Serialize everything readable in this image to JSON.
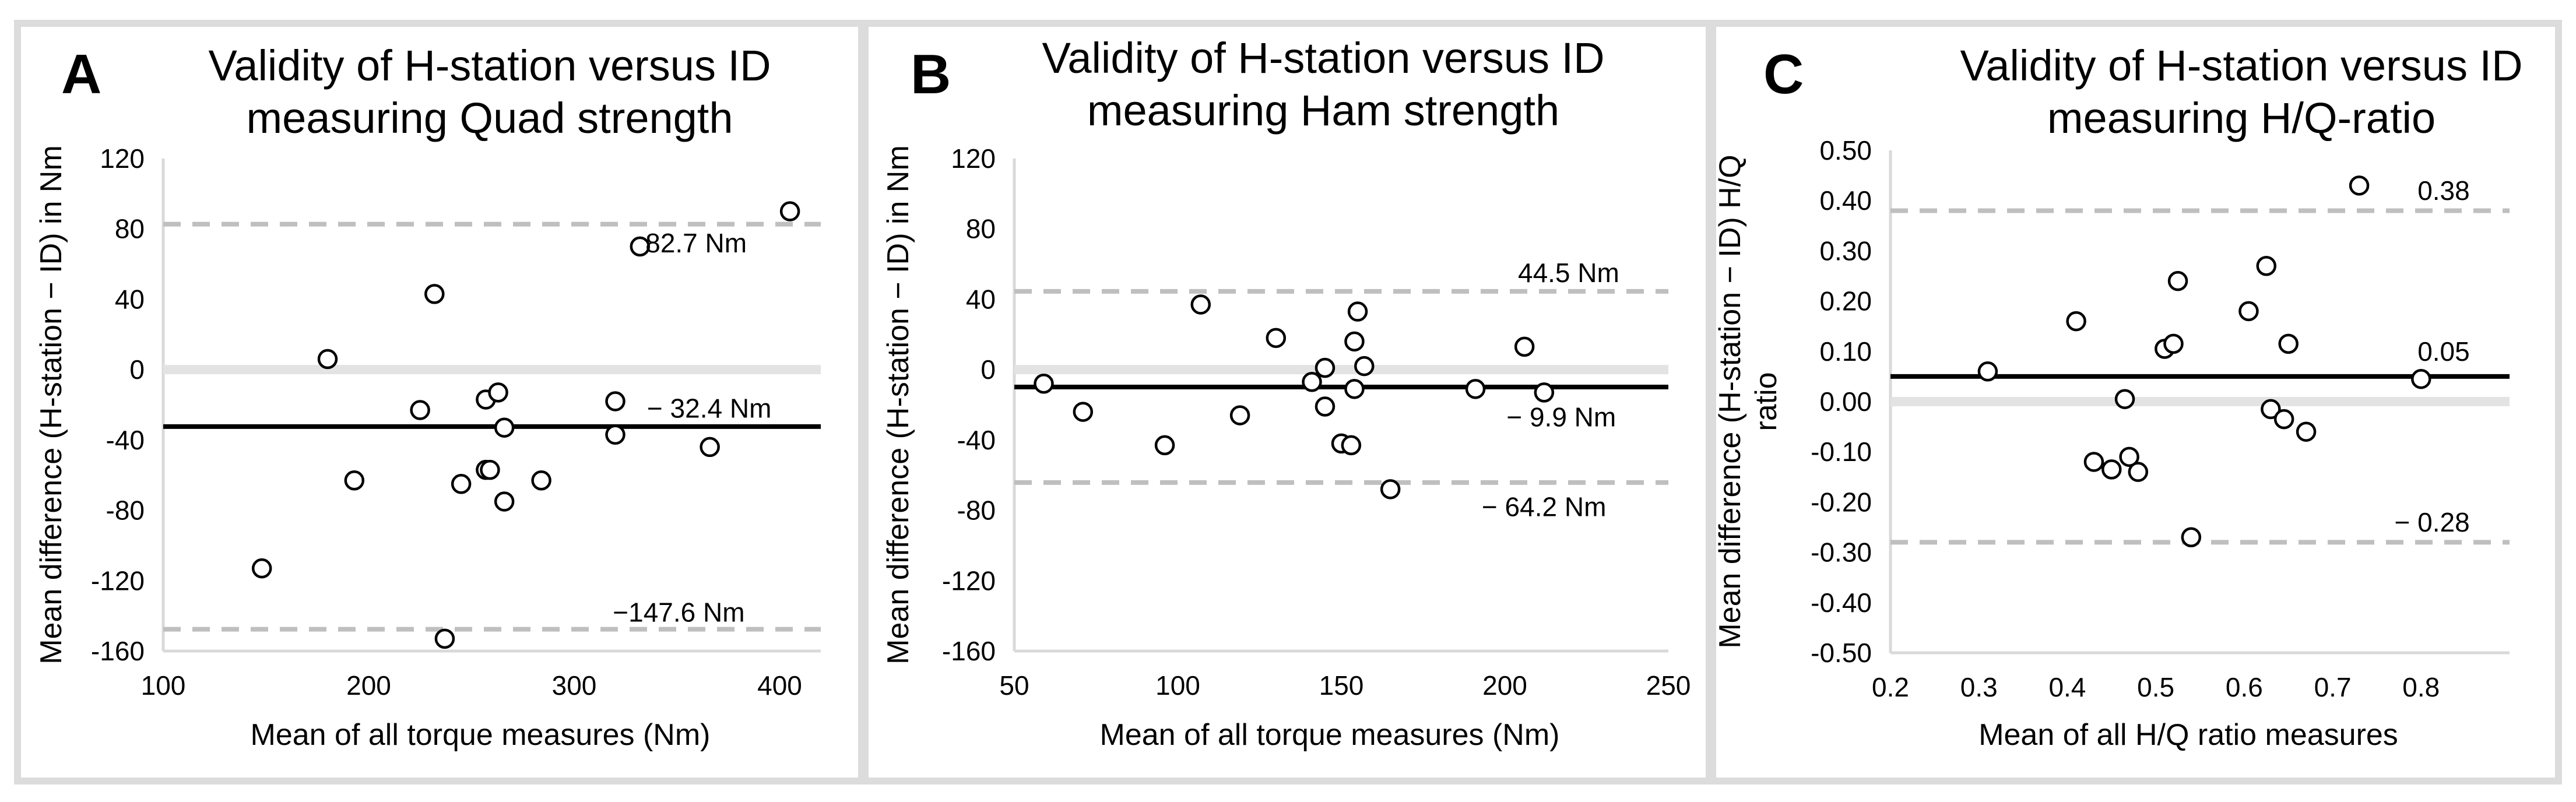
{
  "chart_data": [
    {
      "type": "scatter",
      "panel_letter": "A",
      "title_lines": [
        "Validity of H-station versus ID",
        "measuring Quad strength"
      ],
      "xlabel": "Mean of all torque measures (Nm)",
      "ylabel": "Mean difference (H-station − ID) in Nm",
      "xlim": [
        100,
        420
      ],
      "ylim": [
        -160,
        120
      ],
      "xticks": [
        100,
        200,
        300,
        400
      ],
      "yticks": [
        -160,
        -120,
        -80,
        -40,
        0,
        40,
        80,
        120
      ],
      "tick_decimals": 0,
      "zero_line": 0,
      "mean_line": -32.4,
      "upper_loa": 82.7,
      "lower_loa": -147.6,
      "annotations": [
        {
          "text": "82.7 Nm",
          "x": 384,
          "y": 72
        },
        {
          "text": "− 32.4 Nm",
          "x": 396,
          "y": -22
        },
        {
          "text": "−147.6 Nm",
          "x": 383,
          "y": -138
        }
      ],
      "points": [
        {
          "x": 148,
          "y": -113
        },
        {
          "x": 180,
          "y": 6
        },
        {
          "x": 193,
          "y": -63
        },
        {
          "x": 225,
          "y": -23
        },
        {
          "x": 232,
          "y": 43
        },
        {
          "x": 237,
          "y": -153
        },
        {
          "x": 245,
          "y": -65
        },
        {
          "x": 257,
          "y": -17
        },
        {
          "x": 257,
          "y": -57
        },
        {
          "x": 259,
          "y": -57
        },
        {
          "x": 263,
          "y": -13
        },
        {
          "x": 266,
          "y": -33
        },
        {
          "x": 266,
          "y": -75
        },
        {
          "x": 284,
          "y": -63
        },
        {
          "x": 320,
          "y": -18
        },
        {
          "x": 320,
          "y": -37
        },
        {
          "x": 332,
          "y": 70
        },
        {
          "x": 366,
          "y": -44
        },
        {
          "x": 405,
          "y": 90
        }
      ]
    },
    {
      "type": "scatter",
      "panel_letter": "B",
      "title_lines": [
        "Validity of H-station versus ID",
        "measuring Ham strength"
      ],
      "xlabel": "Mean of all torque measures (Nm)",
      "ylabel": "Mean difference (H-station − ID) in Nm",
      "xlim": [
        50,
        250
      ],
      "ylim": [
        -160,
        120
      ],
      "xticks": [
        50,
        100,
        150,
        200,
        250
      ],
      "yticks": [
        -160,
        -120,
        -80,
        -40,
        0,
        40,
        80,
        120
      ],
      "tick_decimals": 0,
      "zero_line": 0,
      "mean_line": -9.9,
      "upper_loa": 44.5,
      "lower_loa": -64.2,
      "annotations": [
        {
          "text": "44.5 Nm",
          "x": 235,
          "y": 55
        },
        {
          "text": "− 9.9 Nm",
          "x": 234,
          "y": -27
        },
        {
          "text": "− 64.2 Nm",
          "x": 231,
          "y": -78
        }
      ],
      "points": [
        {
          "x": 59,
          "y": -8
        },
        {
          "x": 71,
          "y": -24
        },
        {
          "x": 96,
          "y": -43
        },
        {
          "x": 107,
          "y": 37
        },
        {
          "x": 119,
          "y": -26
        },
        {
          "x": 130,
          "y": 18
        },
        {
          "x": 141,
          "y": -7
        },
        {
          "x": 145,
          "y": 1
        },
        {
          "x": 145,
          "y": -21
        },
        {
          "x": 150,
          "y": -42
        },
        {
          "x": 153,
          "y": -43
        },
        {
          "x": 154,
          "y": 16
        },
        {
          "x": 154,
          "y": -11
        },
        {
          "x": 155,
          "y": 33
        },
        {
          "x": 157,
          "y": 2
        },
        {
          "x": 165,
          "y": -68
        },
        {
          "x": 191,
          "y": -11
        },
        {
          "x": 206,
          "y": 13
        },
        {
          "x": 212,
          "y": -13
        }
      ]
    },
    {
      "type": "scatter",
      "panel_letter": "C",
      "title_lines": [
        "Validity of  H-station versus ID",
        "measuring H/Q-ratio"
      ],
      "xlabel": "Mean of all H/Q ratio measures",
      "ylabel": "Mean difference (H-station − ID) H/Q",
      "ylabel2": "ratio",
      "xlim": [
        0.2,
        0.9
      ],
      "ylim": [
        -0.5,
        0.5
      ],
      "xticks": [
        0.2,
        0.3,
        0.4,
        0.5,
        0.6,
        0.7,
        0.8
      ],
      "yticks": [
        -0.5,
        -0.4,
        -0.3,
        -0.2,
        -0.1,
        0.0,
        0.1,
        0.2,
        0.3,
        0.4,
        0.5
      ],
      "tick_decimals": 2,
      "xtick_decimals": 1,
      "zero_line": 0.0,
      "mean_line": 0.05,
      "upper_loa": 0.38,
      "lower_loa": -0.28,
      "annotations": [
        {
          "text": "0.38",
          "x": 0.855,
          "y": 0.42
        },
        {
          "text": "0.05",
          "x": 0.855,
          "y": 0.1
        },
        {
          "text": "− 0.28",
          "x": 0.855,
          "y": -0.24
        }
      ],
      "points": [
        {
          "x": 0.31,
          "y": 0.06
        },
        {
          "x": 0.41,
          "y": 0.16
        },
        {
          "x": 0.43,
          "y": -0.12
        },
        {
          "x": 0.45,
          "y": -0.135
        },
        {
          "x": 0.465,
          "y": 0.005
        },
        {
          "x": 0.47,
          "y": -0.11
        },
        {
          "x": 0.48,
          "y": -0.14
        },
        {
          "x": 0.51,
          "y": 0.105
        },
        {
          "x": 0.52,
          "y": 0.115
        },
        {
          "x": 0.525,
          "y": 0.24
        },
        {
          "x": 0.54,
          "y": -0.27
        },
        {
          "x": 0.605,
          "y": 0.18
        },
        {
          "x": 0.625,
          "y": 0.27
        },
        {
          "x": 0.63,
          "y": -0.015
        },
        {
          "x": 0.645,
          "y": -0.035
        },
        {
          "x": 0.65,
          "y": 0.115
        },
        {
          "x": 0.67,
          "y": -0.06
        },
        {
          "x": 0.73,
          "y": 0.43
        },
        {
          "x": 0.8,
          "y": 0.045
        }
      ]
    }
  ],
  "colors": {
    "frame": "#dcdcdc",
    "mean_line": "#000000",
    "loa_line": "#bfbfbf",
    "zero_line": "#e3e3e3",
    "marker_stroke": "#000000",
    "axis_line": "#d9d9d9"
  }
}
